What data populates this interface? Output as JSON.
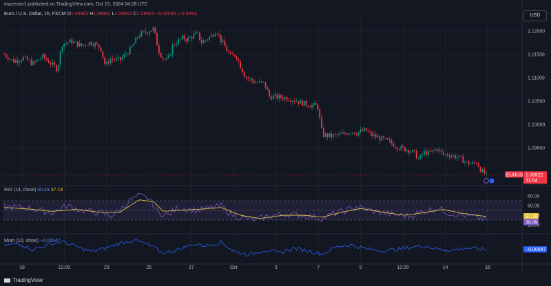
{
  "header": {
    "published_line": "mazenas1 published on TradingView.com, Oct 15, 2024 04:28 UTC",
    "legend_name": "Euro / U.S. Dollar, 1h, FXCM",
    "legend_o_label": "O",
    "legend_o": "1.08962",
    "legend_h_label": "H",
    "legend_h": "1.08962",
    "legend_l_label": "L",
    "legend_l": "1.08915",
    "legend_c_label": "C",
    "legend_c": "1.08922",
    "legend_change": "−0.00040 (−0.04%)",
    "currency": "USD"
  },
  "colors": {
    "background": "#131722",
    "up": "#089981",
    "down": "#f23645",
    "rsi_line": "#7e57c2",
    "rsi_ma": "#e0c341",
    "mom_line": "#2962ff",
    "badge_price": "#f23645",
    "badge_rsi_ma": "#e0c341",
    "badge_rsi": "#7e57c2",
    "badge_mom": "#2962ff"
  },
  "price_badge": {
    "symbol": "EURUSD",
    "price": "1.08922",
    "countdown": "31:04"
  },
  "rsi": {
    "label": "RSI (14, close)",
    "value_rsi": "30.49",
    "value_ma": "37.18",
    "badge_ma": "37.18",
    "badge_rsi": "30.49"
  },
  "mom": {
    "label": "Mom (10, close)",
    "value": "−0.00047",
    "badge": "−0.00047"
  },
  "brand": "TradingView",
  "chart_data": [
    {
      "type": "candlestick",
      "title": "Euro / U.S. Dollar, 1h, FXCM",
      "x_tick_labels": [
        "18",
        "12:00",
        "23",
        "25",
        "27",
        "Oct",
        "3",
        "7",
        "9",
        "12:00",
        "14",
        "16"
      ],
      "y_tick_labels": [
        "1.12000",
        "1.11500",
        "1.11000",
        "1.10500",
        "1.10000",
        "1.09500"
      ],
      "ylim": [
        1.0875,
        1.1225
      ],
      "last_price": 1.08922,
      "grid": true,
      "path": [
        [
          0,
          1.115
        ],
        [
          0.02,
          1.1135
        ],
        [
          0.04,
          1.1142
        ],
        [
          0.06,
          1.113
        ],
        [
          0.08,
          1.1145
        ],
        [
          0.1,
          1.1128
        ],
        [
          0.11,
          1.1118
        ],
        [
          0.12,
          1.1172
        ],
        [
          0.14,
          1.1178
        ],
        [
          0.16,
          1.1168
        ],
        [
          0.18,
          1.1176
        ],
        [
          0.2,
          1.1165
        ],
        [
          0.21,
          1.1125
        ],
        [
          0.22,
          1.114
        ],
        [
          0.24,
          1.1138
        ],
        [
          0.26,
          1.1158
        ],
        [
          0.28,
          1.1192
        ],
        [
          0.3,
          1.12
        ],
        [
          0.31,
          1.1205
        ],
        [
          0.32,
          1.116
        ],
        [
          0.33,
          1.114
        ],
        [
          0.34,
          1.1138
        ],
        [
          0.35,
          1.117
        ],
        [
          0.37,
          1.1185
        ],
        [
          0.38,
          1.1182
        ],
        [
          0.4,
          1.1195
        ],
        [
          0.41,
          1.1175
        ],
        [
          0.43,
          1.119
        ],
        [
          0.44,
          1.1202
        ],
        [
          0.45,
          1.118
        ],
        [
          0.47,
          1.1145
        ],
        [
          0.48,
          1.115
        ],
        [
          0.49,
          1.1125
        ],
        [
          0.5,
          1.1102
        ],
        [
          0.52,
          1.109
        ],
        [
          0.54,
          1.1088
        ],
        [
          0.55,
          1.106
        ],
        [
          0.57,
          1.1058
        ],
        [
          0.58,
          1.1058
        ],
        [
          0.6,
          1.1053
        ],
        [
          0.62,
          1.1045
        ],
        [
          0.64,
          1.104
        ],
        [
          0.65,
          1.104
        ],
        [
          0.66,
          1.0978
        ],
        [
          0.68,
          1.0975
        ],
        [
          0.7,
          1.0978
        ],
        [
          0.72,
          1.0986
        ],
        [
          0.73,
          1.0982
        ],
        [
          0.75,
          1.0988
        ],
        [
          0.76,
          1.0978
        ],
        [
          0.78,
          1.097
        ],
        [
          0.8,
          1.0962
        ],
        [
          0.82,
          1.095
        ],
        [
          0.84,
          1.0945
        ],
        [
          0.85,
          1.094
        ],
        [
          0.86,
          1.0925
        ],
        [
          0.87,
          1.094
        ],
        [
          0.88,
          1.0938
        ],
        [
          0.9,
          1.0948
        ],
        [
          0.91,
          1.0935
        ],
        [
          0.92,
          1.0936
        ],
        [
          0.94,
          1.093
        ],
        [
          0.95,
          1.0925
        ],
        [
          0.96,
          1.0918
        ],
        [
          0.97,
          1.0915
        ],
        [
          0.98,
          1.092
        ],
        [
          0.99,
          1.09
        ],
        [
          1.0,
          1.0892
        ]
      ]
    },
    {
      "type": "line",
      "title": "RSI (14, close)",
      "series_names": [
        "RSI",
        "RSI-based MA"
      ],
      "y_tick_labels": [
        "80.00",
        "60.00",
        "40.00",
        "20.00"
      ],
      "ylim": [
        10,
        90
      ],
      "overbought": 70,
      "oversold": 30,
      "rsi_path": [
        [
          0,
          58
        ],
        [
          0.05,
          55
        ],
        [
          0.1,
          45
        ],
        [
          0.13,
          60
        ],
        [
          0.16,
          50
        ],
        [
          0.2,
          45
        ],
        [
          0.22,
          38
        ],
        [
          0.24,
          50
        ],
        [
          0.26,
          70
        ],
        [
          0.28,
          80
        ],
        [
          0.3,
          75
        ],
        [
          0.32,
          45
        ],
        [
          0.34,
          40
        ],
        [
          0.36,
          55
        ],
        [
          0.4,
          50
        ],
        [
          0.43,
          55
        ],
        [
          0.45,
          60
        ],
        [
          0.47,
          42
        ],
        [
          0.49,
          35
        ],
        [
          0.52,
          30
        ],
        [
          0.55,
          38
        ],
        [
          0.58,
          42
        ],
        [
          0.62,
          40
        ],
        [
          0.66,
          33
        ],
        [
          0.68,
          42
        ],
        [
          0.71,
          50
        ],
        [
          0.73,
          58
        ],
        [
          0.76,
          50
        ],
        [
          0.8,
          42
        ],
        [
          0.84,
          38
        ],
        [
          0.87,
          48
        ],
        [
          0.9,
          55
        ],
        [
          0.92,
          45
        ],
        [
          0.95,
          40
        ],
        [
          0.98,
          35
        ],
        [
          1.0,
          30.49
        ]
      ],
      "ma_path": [
        [
          0,
          56
        ],
        [
          0.05,
          53
        ],
        [
          0.1,
          48
        ],
        [
          0.15,
          52
        ],
        [
          0.2,
          46
        ],
        [
          0.24,
          46
        ],
        [
          0.28,
          72
        ],
        [
          0.31,
          68
        ],
        [
          0.33,
          48
        ],
        [
          0.36,
          50
        ],
        [
          0.4,
          52
        ],
        [
          0.45,
          56
        ],
        [
          0.49,
          40
        ],
        [
          0.53,
          33
        ],
        [
          0.58,
          40
        ],
        [
          0.62,
          40
        ],
        [
          0.66,
          36
        ],
        [
          0.7,
          46
        ],
        [
          0.74,
          54
        ],
        [
          0.78,
          47
        ],
        [
          0.83,
          40
        ],
        [
          0.87,
          45
        ],
        [
          0.91,
          52
        ],
        [
          0.95,
          44
        ],
        [
          1.0,
          37.18
        ]
      ]
    },
    {
      "type": "line",
      "title": "Mom (10, close)",
      "series_names": [
        "Mom"
      ],
      "last_value": -0.00047,
      "ylim": [
        -0.004,
        0.004
      ],
      "mom_path": [
        [
          0,
          0.0008
        ],
        [
          0.03,
          0.0015
        ],
        [
          0.06,
          -0.0005
        ],
        [
          0.09,
          0.001
        ],
        [
          0.12,
          0.002
        ],
        [
          0.15,
          0.0005
        ],
        [
          0.18,
          -0.001
        ],
        [
          0.21,
          0.0
        ],
        [
          0.24,
          0.0015
        ],
        [
          0.27,
          0.0025
        ],
        [
          0.3,
          0.001
        ],
        [
          0.33,
          -0.0015
        ],
        [
          0.36,
          -0.0005
        ],
        [
          0.39,
          0.0012
        ],
        [
          0.42,
          0.0008
        ],
        [
          0.45,
          0.0018
        ],
        [
          0.48,
          -0.0012
        ],
        [
          0.51,
          -0.002
        ],
        [
          0.54,
          -0.0005
        ],
        [
          0.57,
          -0.0015
        ],
        [
          0.6,
          0.0
        ],
        [
          0.63,
          -0.0008
        ],
        [
          0.66,
          -0.0018
        ],
        [
          0.69,
          0.0005
        ],
        [
          0.72,
          0.001
        ],
        [
          0.75,
          -0.0002
        ],
        [
          0.78,
          -0.0008
        ],
        [
          0.81,
          -0.0005
        ],
        [
          0.84,
          0.0002
        ],
        [
          0.87,
          0.0008
        ],
        [
          0.9,
          -0.0003
        ],
        [
          0.93,
          -0.0006
        ],
        [
          0.96,
          0.0001
        ],
        [
          1.0,
          -0.00047
        ]
      ]
    }
  ]
}
